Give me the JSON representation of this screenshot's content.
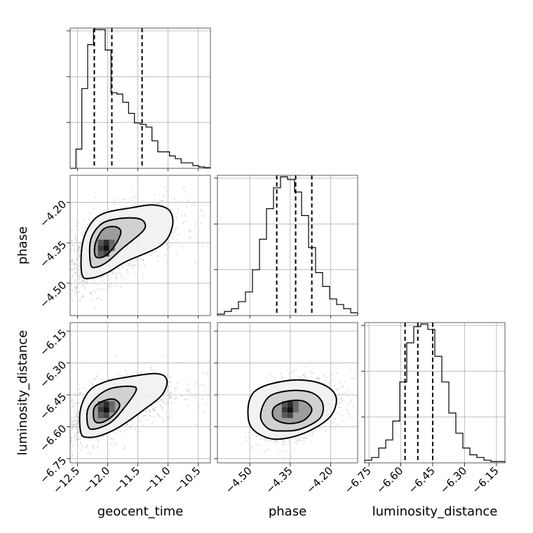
{
  "chart_data": {
    "type": "corner",
    "parameters": [
      "geocent_time",
      "phase",
      "luminosity_distance"
    ],
    "tick_labels": {
      "geocent_time": [
        "−12.5",
        "−12.0",
        "−11.5",
        "−11.0",
        "−10.5"
      ],
      "phase": [
        "−4.50",
        "−4.35",
        "−4.20"
      ],
      "luminosity_distance": [
        "−6.75",
        "−6.60",
        "−6.45",
        "−6.30",
        "−6.15"
      ]
    },
    "ranges": {
      "geocent_time": [
        -12.62,
        -10.3
      ],
      "phase": [
        -4.62,
        -4.1
      ],
      "luminosity_distance": [
        -6.77,
        -6.11
      ]
    },
    "ticks": {
      "geocent_time": [
        -12.5,
        -12.0,
        -11.5,
        -11.0,
        -10.5
      ],
      "phase": [
        -4.5,
        -4.35,
        -4.2
      ],
      "luminosity_distance": [
        -6.75,
        -6.6,
        -6.45,
        -6.3,
        -6.15
      ]
    },
    "quantiles": {
      "geocent_time": [
        -12.22,
        -11.93,
        -11.43
      ],
      "phase": [
        -4.4,
        -4.33,
        -4.27
      ],
      "luminosity_distance": [
        -6.58,
        -6.52,
        -6.45
      ]
    },
    "histograms": {
      "geocent_time": [
        0,
        14,
        58,
        90,
        101,
        101,
        86,
        55,
        54,
        48,
        40,
        33,
        32,
        30,
        20,
        12,
        12,
        9,
        7,
        4,
        4,
        2,
        1,
        0.5
      ],
      "phase": [
        1,
        3,
        5,
        10,
        17,
        33,
        55,
        77,
        92,
        100,
        98,
        89,
        72,
        49,
        31,
        21,
        12,
        8,
        5,
        2
      ],
      "luminosity_distance": [
        2,
        4,
        11,
        17,
        31,
        60,
        89,
        101,
        103,
        99,
        79,
        60,
        37,
        22,
        11,
        6,
        4,
        2,
        1,
        1
      ]
    },
    "hist_2d": [
      {
        "x": "geocent_time",
        "y": "phase",
        "peak": [
          -12.02,
          -4.37
        ],
        "levels": [
          [
            [
              -12.42,
              -4.47
            ],
            [
              -12.42,
              -4.36
            ],
            [
              -12.28,
              -4.28
            ],
            [
              -12.05,
              -4.24
            ],
            [
              -11.6,
              -4.22
            ],
            [
              -11.25,
              -4.21
            ],
            [
              -10.98,
              -4.23
            ],
            [
              -10.93,
              -4.29
            ],
            [
              -11.12,
              -4.36
            ],
            [
              -11.7,
              -4.42
            ],
            [
              -12.0,
              -4.46
            ],
            [
              -12.25,
              -4.48
            ]
          ],
          [
            [
              -12.28,
              -4.43
            ],
            [
              -12.28,
              -4.34
            ],
            [
              -12.1,
              -4.28
            ],
            [
              -11.8,
              -4.26
            ],
            [
              -11.5,
              -4.26
            ],
            [
              -11.38,
              -4.28
            ],
            [
              -11.43,
              -4.31
            ],
            [
              -11.75,
              -4.37
            ],
            [
              -12.0,
              -4.42
            ],
            [
              -12.18,
              -4.44
            ]
          ],
          [
            [
              -12.2,
              -4.4
            ],
            [
              -12.2,
              -4.35
            ],
            [
              -12.07,
              -4.3
            ],
            [
              -11.88,
              -4.29
            ],
            [
              -11.78,
              -4.31
            ],
            [
              -11.88,
              -4.36
            ],
            [
              -12.05,
              -4.4
            ]
          ]
        ],
        "points_n": 1500,
        "spread": [
          0.42,
          0.08
        ],
        "rho": 0.6
      },
      {
        "x": "geocent_time",
        "y": "luminosity_distance",
        "peak": [
          -12.02,
          -6.52
        ],
        "levels": [
          [
            [
              -12.44,
              -6.63
            ],
            [
              -12.45,
              -6.52
            ],
            [
              -12.3,
              -6.43
            ],
            [
              -12.05,
              -6.39
            ],
            [
              -11.75,
              -6.37
            ],
            [
              -11.2,
              -6.35
            ],
            [
              -11.02,
              -6.38
            ],
            [
              -11.1,
              -6.45
            ],
            [
              -11.4,
              -6.52
            ],
            [
              -11.8,
              -6.6
            ],
            [
              -12.1,
              -6.64
            ],
            [
              -12.32,
              -6.65
            ]
          ],
          [
            [
              -12.32,
              -6.6
            ],
            [
              -12.33,
              -6.52
            ],
            [
              -12.18,
              -6.46
            ],
            [
              -11.95,
              -6.42
            ],
            [
              -11.62,
              -6.41
            ],
            [
              -11.53,
              -6.43
            ],
            [
              -11.75,
              -6.52
            ],
            [
              -11.95,
              -6.58
            ],
            [
              -12.2,
              -6.61
            ]
          ],
          [
            [
              -12.22,
              -6.57
            ],
            [
              -12.22,
              -6.51
            ],
            [
              -12.08,
              -6.48
            ],
            [
              -11.9,
              -6.47
            ],
            [
              -11.8,
              -6.5
            ],
            [
              -11.92,
              -6.55
            ],
            [
              -12.1,
              -6.58
            ]
          ]
        ],
        "points_n": 1500,
        "spread": [
          0.42,
          0.08
        ],
        "rho": 0.55
      },
      {
        "x": "phase",
        "y": "luminosity_distance",
        "peak": [
          -4.35,
          -6.52
        ],
        "levels": [
          [
            [
              -4.44,
              -6.65
            ],
            [
              -4.5,
              -6.59
            ],
            [
              -4.5,
              -6.47
            ],
            [
              -4.45,
              -6.41
            ],
            [
              -4.33,
              -6.38
            ],
            [
              -4.23,
              -6.4
            ],
            [
              -4.18,
              -6.46
            ],
            [
              -4.2,
              -6.55
            ],
            [
              -4.28,
              -6.62
            ],
            [
              -4.37,
              -6.655
            ]
          ],
          [
            [
              -4.43,
              -6.61
            ],
            [
              -4.46,
              -6.55
            ],
            [
              -4.43,
              -6.46
            ],
            [
              -4.35,
              -6.43
            ],
            [
              -4.27,
              -6.44
            ],
            [
              -4.23,
              -6.49
            ],
            [
              -4.24,
              -6.56
            ],
            [
              -4.31,
              -6.61
            ],
            [
              -4.37,
              -6.62
            ]
          ],
          [
            [
              -4.41,
              -6.56
            ],
            [
              -4.41,
              -6.51
            ],
            [
              -4.36,
              -6.48
            ],
            [
              -4.3,
              -6.48
            ],
            [
              -4.27,
              -6.52
            ],
            [
              -4.3,
              -6.57
            ],
            [
              -4.36,
              -6.585
            ]
          ]
        ],
        "points_n": 1500,
        "spread": [
          0.06,
          0.07
        ],
        "rho": 0.35
      }
    ]
  }
}
